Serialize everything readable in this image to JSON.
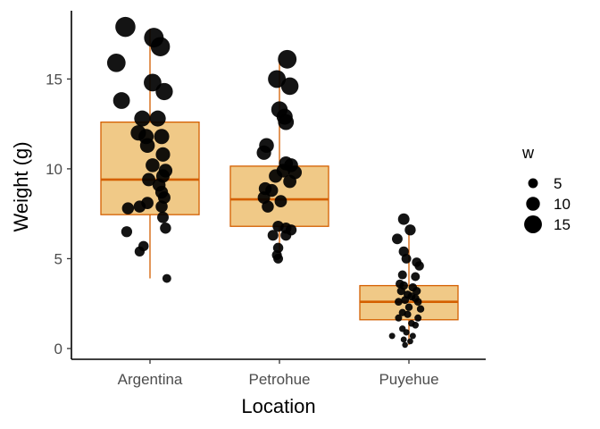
{
  "chart_data": {
    "type": "box",
    "xlabel": "Location",
    "ylabel": "Weight (g)",
    "categories": [
      "Argentina",
      "Petrohue",
      "Puyehue"
    ],
    "ylim": [
      -0.6,
      18.8
    ],
    "yticks": [
      0,
      5,
      10,
      15
    ],
    "grid": false,
    "box_fill": "#f0c987",
    "box_stroke": "#d45f00",
    "point_color": "#000000",
    "point_opacity": 0.92,
    "boxes": [
      {
        "category": "Argentina",
        "whisker_low": 3.9,
        "q1": 7.45,
        "median": 9.4,
        "q3": 12.6,
        "whisker_high": 17.8
      },
      {
        "category": "Petrohue",
        "whisker_low": 5.0,
        "q1": 6.8,
        "median": 8.3,
        "q3": 10.15,
        "whisker_high": 16.0
      },
      {
        "category": "Puyehue",
        "whisker_low": 0.2,
        "q1": 1.6,
        "median": 2.6,
        "q3": 3.5,
        "whisker_high": 6.6
      }
    ],
    "points": [
      {
        "category": "Argentina",
        "jitter": -0.19,
        "y": 17.9,
        "w": 17.9
      },
      {
        "category": "Argentina",
        "jitter": 0.03,
        "y": 17.3,
        "w": 17.3
      },
      {
        "category": "Argentina",
        "jitter": 0.08,
        "y": 16.8,
        "w": 16.8
      },
      {
        "category": "Argentina",
        "jitter": -0.26,
        "y": 15.9,
        "w": 15.9
      },
      {
        "category": "Argentina",
        "jitter": 0.02,
        "y": 14.8,
        "w": 14.8
      },
      {
        "category": "Argentina",
        "jitter": 0.11,
        "y": 14.3,
        "w": 14.3
      },
      {
        "category": "Argentina",
        "jitter": -0.22,
        "y": 13.8,
        "w": 13.8
      },
      {
        "category": "Argentina",
        "jitter": -0.06,
        "y": 12.8,
        "w": 12.8
      },
      {
        "category": "Argentina",
        "jitter": 0.06,
        "y": 12.8,
        "w": 12.8
      },
      {
        "category": "Argentina",
        "jitter": -0.09,
        "y": 12.0,
        "w": 12.0
      },
      {
        "category": "Argentina",
        "jitter": -0.03,
        "y": 11.8,
        "w": 11.8
      },
      {
        "category": "Argentina",
        "jitter": 0.09,
        "y": 11.8,
        "w": 11.8
      },
      {
        "category": "Argentina",
        "jitter": -0.02,
        "y": 11.3,
        "w": 11.3
      },
      {
        "category": "Argentina",
        "jitter": 0.1,
        "y": 10.8,
        "w": 10.8
      },
      {
        "category": "Argentina",
        "jitter": 0.02,
        "y": 10.2,
        "w": 10.2
      },
      {
        "category": "Argentina",
        "jitter": 0.12,
        "y": 9.9,
        "w": 9.9
      },
      {
        "category": "Argentina",
        "jitter": 0.1,
        "y": 9.6,
        "w": 9.6
      },
      {
        "category": "Argentina",
        "jitter": -0.01,
        "y": 9.4,
        "w": 9.4
      },
      {
        "category": "Argentina",
        "jitter": 0.07,
        "y": 9.1,
        "w": 9.1
      },
      {
        "category": "Argentina",
        "jitter": 0.09,
        "y": 8.7,
        "w": 8.7
      },
      {
        "category": "Argentina",
        "jitter": 0.11,
        "y": 8.4,
        "w": 8.4
      },
      {
        "category": "Argentina",
        "jitter": -0.02,
        "y": 8.1,
        "w": 8.1
      },
      {
        "category": "Argentina",
        "jitter": -0.08,
        "y": 7.9,
        "w": 7.9
      },
      {
        "category": "Argentina",
        "jitter": 0.09,
        "y": 7.9,
        "w": 7.9
      },
      {
        "category": "Argentina",
        "jitter": -0.17,
        "y": 7.8,
        "w": 7.8
      },
      {
        "category": "Argentina",
        "jitter": 0.1,
        "y": 7.3,
        "w": 7.3
      },
      {
        "category": "Argentina",
        "jitter": 0.12,
        "y": 6.7,
        "w": 6.7
      },
      {
        "category": "Argentina",
        "jitter": -0.18,
        "y": 6.5,
        "w": 6.5
      },
      {
        "category": "Argentina",
        "jitter": -0.05,
        "y": 5.7,
        "w": 5.7
      },
      {
        "category": "Argentina",
        "jitter": -0.08,
        "y": 5.4,
        "w": 5.4
      },
      {
        "category": "Argentina",
        "jitter": 0.13,
        "y": 3.9,
        "w": 3.9
      },
      {
        "category": "Petrohue",
        "jitter": 0.06,
        "y": 16.1,
        "w": 16.1
      },
      {
        "category": "Petrohue",
        "jitter": -0.02,
        "y": 15.0,
        "w": 15.0
      },
      {
        "category": "Petrohue",
        "jitter": 0.08,
        "y": 14.6,
        "w": 14.6
      },
      {
        "category": "Petrohue",
        "jitter": 0.0,
        "y": 13.3,
        "w": 13.3
      },
      {
        "category": "Petrohue",
        "jitter": 0.04,
        "y": 12.9,
        "w": 12.9
      },
      {
        "category": "Petrohue",
        "jitter": 0.05,
        "y": 12.6,
        "w": 12.6
      },
      {
        "category": "Petrohue",
        "jitter": -0.1,
        "y": 11.3,
        "w": 11.3
      },
      {
        "category": "Petrohue",
        "jitter": -0.12,
        "y": 10.9,
        "w": 10.9
      },
      {
        "category": "Petrohue",
        "jitter": 0.05,
        "y": 10.3,
        "w": 10.3
      },
      {
        "category": "Petrohue",
        "jitter": 0.09,
        "y": 10.2,
        "w": 10.2
      },
      {
        "category": "Petrohue",
        "jitter": 0.03,
        "y": 9.9,
        "w": 9.9
      },
      {
        "category": "Petrohue",
        "jitter": 0.12,
        "y": 9.8,
        "w": 9.8
      },
      {
        "category": "Petrohue",
        "jitter": -0.03,
        "y": 9.6,
        "w": 9.6
      },
      {
        "category": "Petrohue",
        "jitter": 0.08,
        "y": 9.3,
        "w": 9.3
      },
      {
        "category": "Petrohue",
        "jitter": -0.11,
        "y": 8.9,
        "w": 8.9
      },
      {
        "category": "Petrohue",
        "jitter": -0.06,
        "y": 8.8,
        "w": 8.8
      },
      {
        "category": "Petrohue",
        "jitter": -0.12,
        "y": 8.4,
        "w": 8.4
      },
      {
        "category": "Petrohue",
        "jitter": 0.01,
        "y": 8.2,
        "w": 8.2
      },
      {
        "category": "Petrohue",
        "jitter": -0.09,
        "y": 7.9,
        "w": 7.9
      },
      {
        "category": "Petrohue",
        "jitter": -0.01,
        "y": 6.8,
        "w": 6.8
      },
      {
        "category": "Petrohue",
        "jitter": 0.05,
        "y": 6.7,
        "w": 6.7
      },
      {
        "category": "Petrohue",
        "jitter": 0.09,
        "y": 6.6,
        "w": 6.6
      },
      {
        "category": "Petrohue",
        "jitter": -0.05,
        "y": 6.3,
        "w": 6.3
      },
      {
        "category": "Petrohue",
        "jitter": 0.05,
        "y": 6.3,
        "w": 6.3
      },
      {
        "category": "Petrohue",
        "jitter": -0.01,
        "y": 5.6,
        "w": 5.6
      },
      {
        "category": "Petrohue",
        "jitter": -0.02,
        "y": 5.2,
        "w": 5.2
      },
      {
        "category": "Petrohue",
        "jitter": -0.01,
        "y": 5.0,
        "w": 5.0
      },
      {
        "category": "Puyehue",
        "jitter": -0.04,
        "y": 7.2,
        "w": 7.2
      },
      {
        "category": "Puyehue",
        "jitter": 0.01,
        "y": 6.6,
        "w": 6.6
      },
      {
        "category": "Puyehue",
        "jitter": -0.09,
        "y": 6.1,
        "w": 6.1
      },
      {
        "category": "Puyehue",
        "jitter": -0.04,
        "y": 5.4,
        "w": 5.4
      },
      {
        "category": "Puyehue",
        "jitter": -0.02,
        "y": 5.0,
        "w": 5.0
      },
      {
        "category": "Puyehue",
        "jitter": 0.06,
        "y": 4.8,
        "w": 4.8
      },
      {
        "category": "Puyehue",
        "jitter": 0.08,
        "y": 4.6,
        "w": 4.6
      },
      {
        "category": "Puyehue",
        "jitter": -0.05,
        "y": 4.1,
        "w": 4.1
      },
      {
        "category": "Puyehue",
        "jitter": 0.05,
        "y": 4.0,
        "w": 4.0
      },
      {
        "category": "Puyehue",
        "jitter": -0.07,
        "y": 3.6,
        "w": 3.6
      },
      {
        "category": "Puyehue",
        "jitter": -0.04,
        "y": 3.5,
        "w": 3.5
      },
      {
        "category": "Puyehue",
        "jitter": 0.03,
        "y": 3.4,
        "w": 3.4
      },
      {
        "category": "Puyehue",
        "jitter": -0.06,
        "y": 3.2,
        "w": 3.2
      },
      {
        "category": "Puyehue",
        "jitter": 0.06,
        "y": 3.2,
        "w": 3.2
      },
      {
        "category": "Puyehue",
        "jitter": -0.01,
        "y": 3.0,
        "w": 3.0
      },
      {
        "category": "Puyehue",
        "jitter": 0.02,
        "y": 2.9,
        "w": 2.9
      },
      {
        "category": "Puyehue",
        "jitter": 0.05,
        "y": 2.8,
        "w": 2.8
      },
      {
        "category": "Puyehue",
        "jitter": -0.03,
        "y": 2.7,
        "w": 2.7
      },
      {
        "category": "Puyehue",
        "jitter": -0.08,
        "y": 2.6,
        "w": 2.6
      },
      {
        "category": "Puyehue",
        "jitter": 0.07,
        "y": 2.6,
        "w": 2.6
      },
      {
        "category": "Puyehue",
        "jitter": 0.0,
        "y": 2.3,
        "w": 2.3
      },
      {
        "category": "Puyehue",
        "jitter": 0.09,
        "y": 2.2,
        "w": 2.2
      },
      {
        "category": "Puyehue",
        "jitter": -0.05,
        "y": 2.0,
        "w": 2.0
      },
      {
        "category": "Puyehue",
        "jitter": -0.01,
        "y": 1.9,
        "w": 1.9
      },
      {
        "category": "Puyehue",
        "jitter": -0.08,
        "y": 1.7,
        "w": 1.7
      },
      {
        "category": "Puyehue",
        "jitter": 0.07,
        "y": 1.7,
        "w": 1.7
      },
      {
        "category": "Puyehue",
        "jitter": 0.02,
        "y": 1.4,
        "w": 1.4
      },
      {
        "category": "Puyehue",
        "jitter": 0.05,
        "y": 1.3,
        "w": 1.3
      },
      {
        "category": "Puyehue",
        "jitter": -0.05,
        "y": 1.1,
        "w": 1.1
      },
      {
        "category": "Puyehue",
        "jitter": -0.02,
        "y": 0.9,
        "w": 0.9
      },
      {
        "category": "Puyehue",
        "jitter": -0.13,
        "y": 0.7,
        "w": 0.7
      },
      {
        "category": "Puyehue",
        "jitter": 0.03,
        "y": 0.7,
        "w": 0.7
      },
      {
        "category": "Puyehue",
        "jitter": -0.04,
        "y": 0.5,
        "w": 0.5
      },
      {
        "category": "Puyehue",
        "jitter": 0.01,
        "y": 0.4,
        "w": 0.4
      },
      {
        "category": "Puyehue",
        "jitter": -0.03,
        "y": 0.2,
        "w": 0.2
      }
    ],
    "legend": {
      "title": "w",
      "placement": "right",
      "entries": [
        {
          "label": "5",
          "value": 5
        },
        {
          "label": "10",
          "value": 10
        },
        {
          "label": "15",
          "value": 15
        }
      ]
    }
  }
}
